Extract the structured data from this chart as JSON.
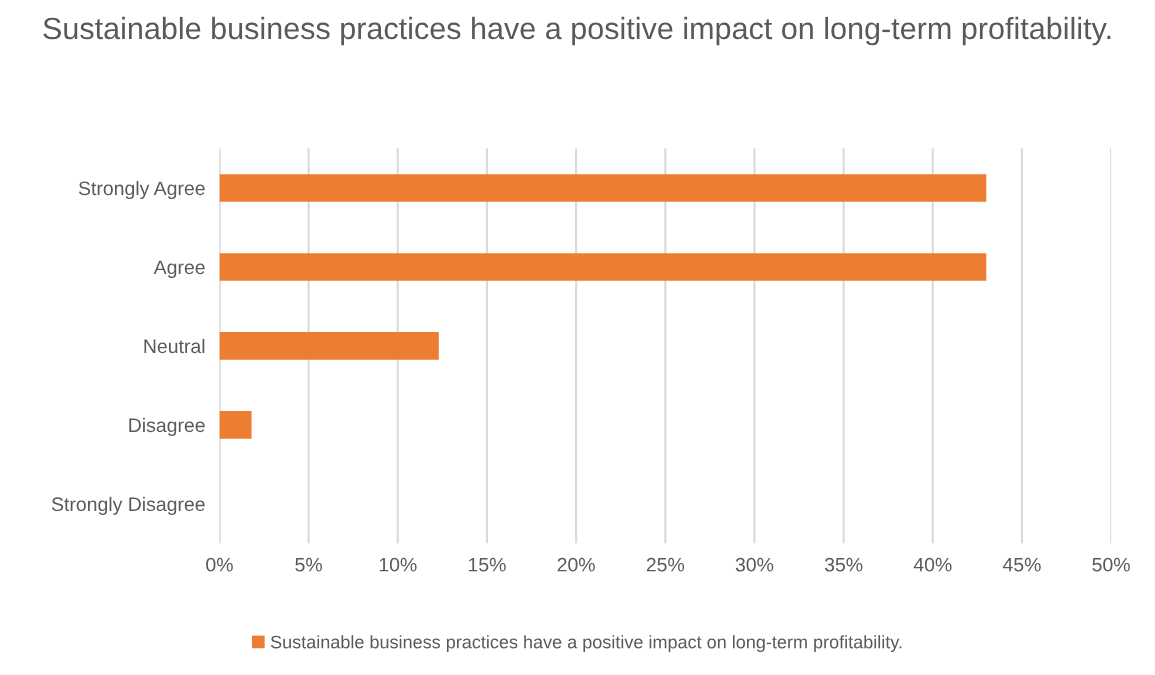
{
  "chart_data": {
    "type": "bar",
    "orientation": "horizontal",
    "title": "Sustainable business practices have a positive impact on long-term profitability.",
    "categories": [
      "Strongly Agree",
      "Agree",
      "Neutral",
      "Disagree",
      "Strongly Disagree"
    ],
    "series": [
      {
        "name": "Sustainable business practices have a positive impact on long-term profitability.",
        "color": "#ed7d31",
        "values": [
          43.0,
          43.0,
          12.3,
          1.8,
          0
        ]
      }
    ],
    "xlim": [
      0,
      50
    ],
    "xticks": [
      {
        "value": 0,
        "label": "0%"
      },
      {
        "value": 5,
        "label": "5%"
      },
      {
        "value": 10,
        "label": "10%"
      },
      {
        "value": 15,
        "label": "15%"
      },
      {
        "value": 20,
        "label": "20%"
      },
      {
        "value": 25,
        "label": "25%"
      },
      {
        "value": 30,
        "label": "30%"
      },
      {
        "value": 35,
        "label": "35%"
      },
      {
        "value": 40,
        "label": "40%"
      },
      {
        "value": 45,
        "label": "45%"
      },
      {
        "value": 50,
        "label": "50%"
      }
    ],
    "grid": "x",
    "legend": "bottom"
  }
}
